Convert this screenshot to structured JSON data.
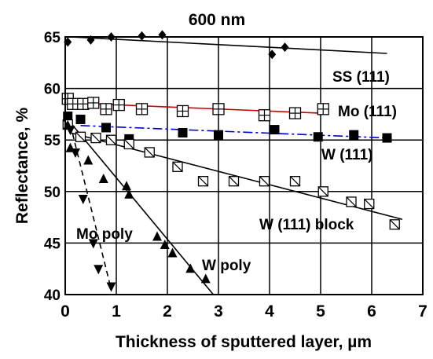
{
  "chart_data": {
    "type": "scatter",
    "title": "600 nm",
    "xlabel": "Thickness of sputtered layer, µm",
    "ylabel": "Reflectance, %",
    "xlim": [
      0,
      7
    ],
    "ylim": [
      40,
      65
    ],
    "xticks": [
      "0",
      "1",
      "2",
      "3",
      "4",
      "5",
      "6",
      "7"
    ],
    "yticks": [
      "40",
      "45",
      "50",
      "55",
      "60",
      "65"
    ],
    "grid": true,
    "series": [
      {
        "name": "SS (111)",
        "marker": "diamond",
        "color": "#000000",
        "points": [
          [
            0.05,
            64.5
          ],
          [
            0.5,
            64.7
          ],
          [
            0.9,
            65.0
          ],
          [
            1.5,
            65.1
          ],
          [
            1.9,
            65.2
          ],
          [
            4.05,
            63.3
          ],
          [
            4.3,
            64.0
          ]
        ],
        "trend": {
          "x": [
            0.1,
            6.3
          ],
          "y": [
            65.0,
            63.4
          ],
          "style": "solid",
          "color": "#000000"
        }
      },
      {
        "name": "Mo (111)",
        "marker": "square-plus",
        "color": "#000000",
        "points": [
          [
            0.05,
            59.0
          ],
          [
            0.15,
            58.5
          ],
          [
            0.35,
            58.5
          ],
          [
            0.55,
            58.6
          ],
          [
            0.8,
            58.0
          ],
          [
            1.05,
            58.4
          ],
          [
            1.5,
            58.0
          ],
          [
            2.3,
            57.8
          ],
          [
            3.0,
            58.0
          ],
          [
            3.9,
            57.4
          ],
          [
            4.5,
            57.6
          ],
          [
            5.05,
            58.0
          ]
        ],
        "trend": {
          "x": [
            0.1,
            5.0
          ],
          "y": [
            58.6,
            57.6
          ],
          "style": "solid",
          "color": "#cc0000"
        }
      },
      {
        "name": "W (111)",
        "marker": "filled-square",
        "color": "#000000",
        "points": [
          [
            0.05,
            57.3
          ],
          [
            0.3,
            57.0
          ],
          [
            0.8,
            56.2
          ],
          [
            1.25,
            55.1
          ],
          [
            2.3,
            55.7
          ],
          [
            3.0,
            55.5
          ],
          [
            4.1,
            56.0
          ],
          [
            4.95,
            55.3
          ],
          [
            5.65,
            55.5
          ],
          [
            6.3,
            55.2
          ]
        ],
        "trend": {
          "x": [
            0.3,
            6.3
          ],
          "y": [
            56.4,
            55.2
          ],
          "style": "dashdot",
          "color": "#0000cc"
        }
      },
      {
        "name": "W (111) block",
        "marker": "square-slash",
        "color": "#000000",
        "points": [
          [
            0.05,
            56.5
          ],
          [
            0.3,
            55.3
          ],
          [
            0.6,
            55.2
          ],
          [
            0.9,
            55.0
          ],
          [
            1.25,
            54.6
          ],
          [
            1.65,
            53.8
          ],
          [
            2.2,
            52.4
          ],
          [
            2.7,
            51.0
          ],
          [
            3.3,
            51.0
          ],
          [
            3.9,
            51.0
          ],
          [
            4.5,
            51.0
          ],
          [
            5.05,
            50.0
          ],
          [
            5.6,
            49.0
          ],
          [
            5.95,
            48.8
          ],
          [
            6.45,
            46.8
          ]
        ],
        "trend": {
          "x": [
            0.1,
            6.6
          ],
          "y": [
            55.7,
            47.3
          ],
          "style": "solid",
          "color": "#000000"
        }
      },
      {
        "name": "W poly",
        "marker": "triangle-up",
        "color": "#000000",
        "points": [
          [
            0.05,
            56.4
          ],
          [
            0.1,
            54.2
          ],
          [
            0.45,
            53.0
          ],
          [
            0.75,
            51.2
          ],
          [
            1.2,
            50.5
          ],
          [
            1.25,
            49.7
          ],
          [
            1.8,
            45.6
          ],
          [
            1.95,
            44.8
          ],
          [
            2.1,
            44.0
          ],
          [
            2.45,
            42.5
          ],
          [
            2.75,
            41.5
          ]
        ],
        "trend": {
          "x": [
            0.05,
            2.9
          ],
          "y": [
            57.0,
            40.0
          ],
          "style": "solid",
          "color": "#000000"
        }
      },
      {
        "name": "Mo poly",
        "marker": "triangle-down",
        "color": "#000000",
        "points": [
          [
            0.1,
            56.0
          ],
          [
            0.2,
            53.8
          ],
          [
            0.35,
            49.3
          ],
          [
            0.55,
            45.0
          ],
          [
            0.65,
            42.5
          ],
          [
            0.9,
            40.8
          ]
        ],
        "trend": {
          "x": [
            0.1,
            0.9
          ],
          "y": [
            56.5,
            40.5
          ],
          "style": "dashed",
          "color": "#000000"
        }
      }
    ]
  }
}
